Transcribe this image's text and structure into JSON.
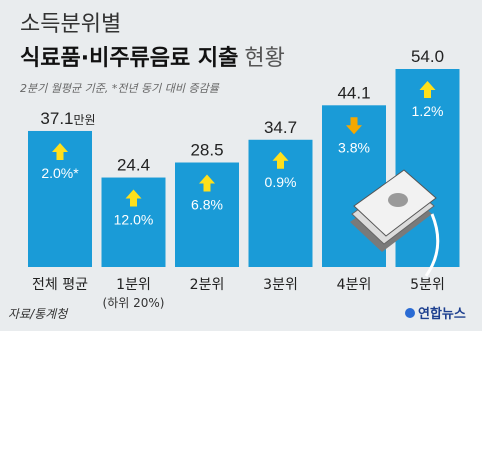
{
  "title_line1": "소득분위별",
  "title_line2_bold": "식료품·비주류음료 지출",
  "title_line2_regular": "현황",
  "note": "2분기 월평균 기준, *전년 동기 대비 증감률",
  "source": "자료/통계청",
  "brand": "연합뉴스",
  "colors": {
    "bar": "#1a9bd7",
    "arrow": "#ffe01b",
    "arrow_down": "#f5a800",
    "panel": "#e9ecee"
  },
  "chart_data": {
    "type": "bar",
    "title": "식료품·비주류음료 지출 현황",
    "unit": "만원",
    "categories": [
      "전체 평균",
      "1분위",
      "2분위",
      "3분위",
      "4분위",
      "5분위"
    ],
    "category_sublabels": [
      "",
      "(하위 20%)",
      "",
      "",
      "",
      ""
    ],
    "values": [
      37.1,
      24.4,
      28.5,
      34.7,
      44.1,
      54.0
    ],
    "value_labels": [
      "37.1",
      "24.4",
      "28.5",
      "34.7",
      "44.1",
      "54.0"
    ],
    "value_suffix": [
      "만원",
      "",
      "",
      "",
      "",
      ""
    ],
    "change_labels": [
      "2.0%*",
      "12.0%",
      "6.8%",
      "0.9%",
      "3.8%",
      "1.2%"
    ],
    "change_direction": [
      "up",
      "up",
      "up",
      "up",
      "down",
      "up"
    ],
    "ylim": [
      0,
      54.0
    ],
    "xlabel": "",
    "ylabel": ""
  }
}
